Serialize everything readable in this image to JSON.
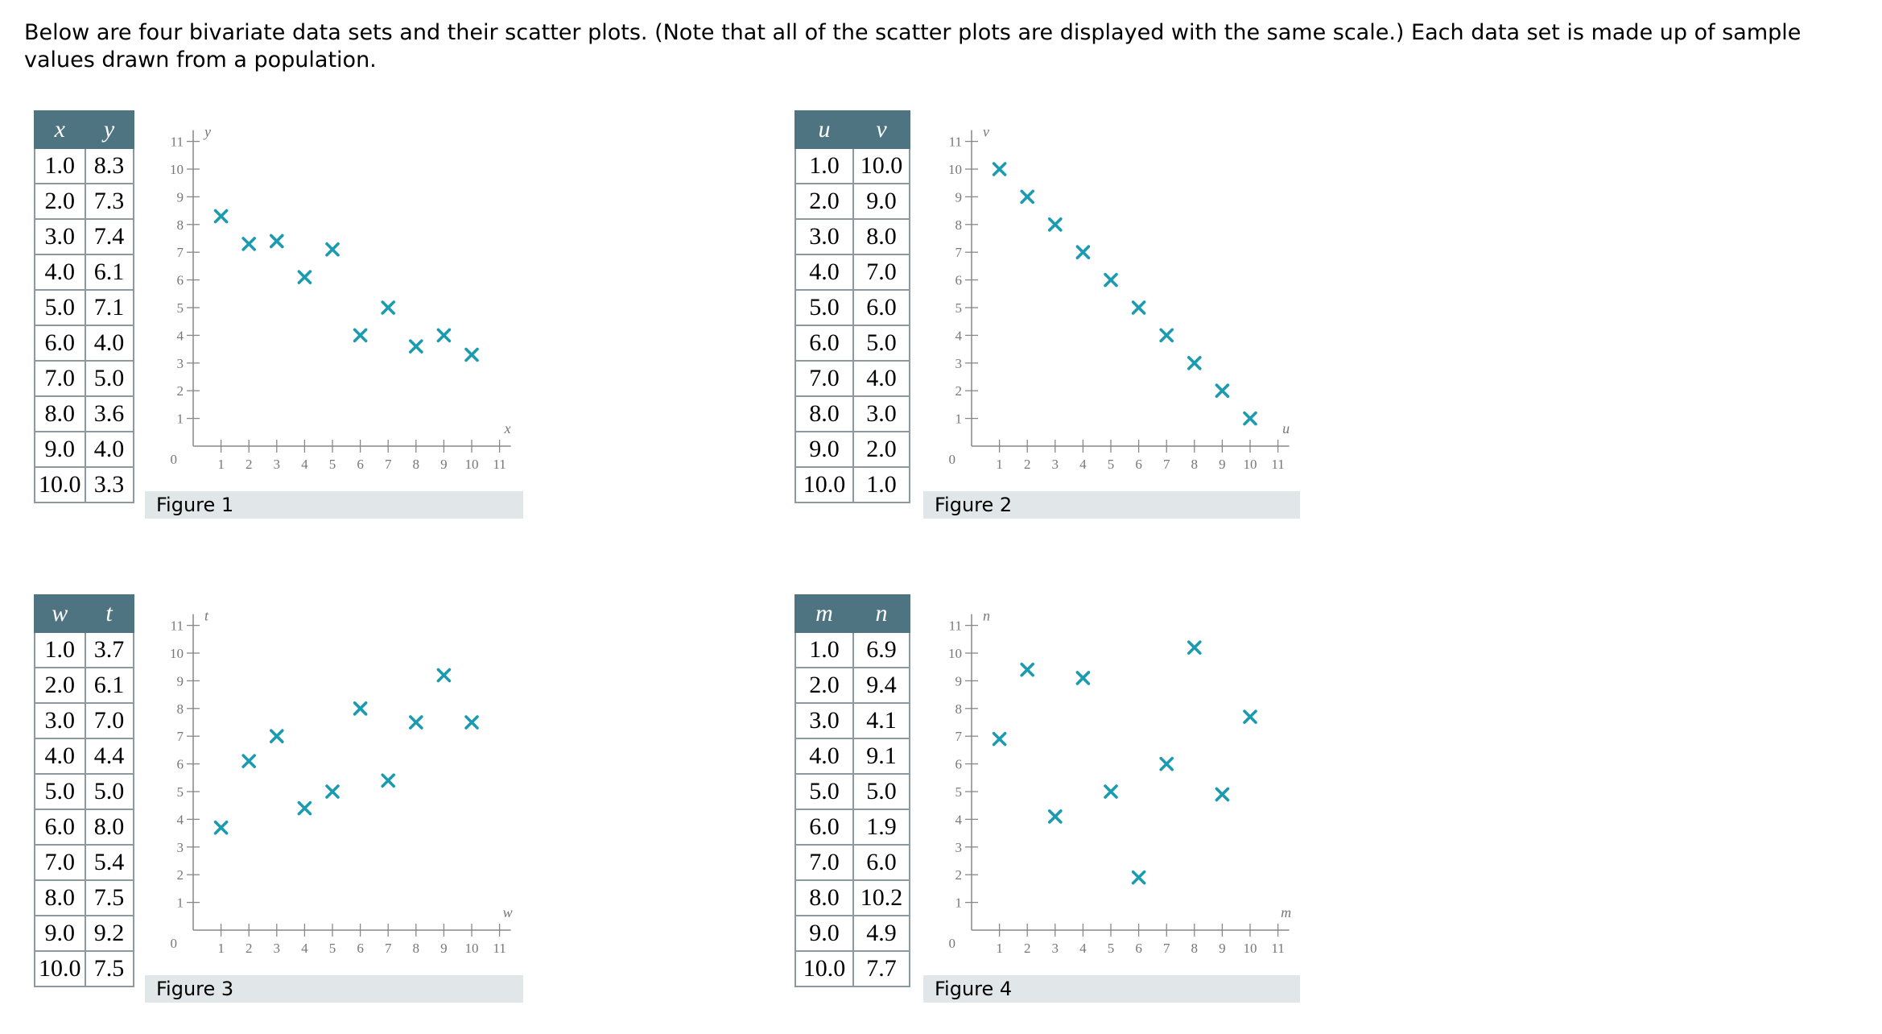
{
  "intro_text": "Below are four bivariate data sets and their scatter plots. (Note that all of the scatter plots are displayed with the same scale.) Each data set is made up of sample values drawn from a population.",
  "colors": {
    "header": "#4e7381",
    "marker": "#1a9bb0",
    "caption_bg": "#e1e7e8"
  },
  "chart_data": [
    {
      "type": "scatter",
      "caption": "Figure 1",
      "xlabel": "x",
      "ylabel": "y",
      "xlim": [
        0,
        11
      ],
      "ylim": [
        0,
        11
      ],
      "x": [
        1.0,
        2.0,
        3.0,
        4.0,
        5.0,
        6.0,
        7.0,
        8.0,
        9.0,
        10.0
      ],
      "y": [
        8.3,
        7.3,
        7.4,
        6.1,
        7.1,
        4.0,
        5.0,
        3.6,
        4.0,
        3.3
      ],
      "x_text": [
        "1.0",
        "2.0",
        "3.0",
        "4.0",
        "5.0",
        "6.0",
        "7.0",
        "8.0",
        "9.0",
        "10.0"
      ],
      "y_text": [
        "8.3",
        "7.3",
        "7.4",
        "6.1",
        "7.1",
        "4.0",
        "5.0",
        "3.6",
        "4.0",
        "3.3"
      ],
      "ticks": [
        "1",
        "2",
        "3",
        "4",
        "5",
        "6",
        "7",
        "8",
        "9",
        "10",
        "11"
      ],
      "origin": "0"
    },
    {
      "type": "scatter",
      "caption": "Figure 2",
      "xlabel": "u",
      "ylabel": "v",
      "xlim": [
        0,
        11
      ],
      "ylim": [
        0,
        11
      ],
      "x": [
        1.0,
        2.0,
        3.0,
        4.0,
        5.0,
        6.0,
        7.0,
        8.0,
        9.0,
        10.0
      ],
      "y": [
        10.0,
        9.0,
        8.0,
        7.0,
        6.0,
        5.0,
        4.0,
        3.0,
        2.0,
        1.0
      ],
      "x_text": [
        "1.0",
        "2.0",
        "3.0",
        "4.0",
        "5.0",
        "6.0",
        "7.0",
        "8.0",
        "9.0",
        "10.0"
      ],
      "y_text": [
        "10.0",
        "9.0",
        "8.0",
        "7.0",
        "6.0",
        "5.0",
        "4.0",
        "3.0",
        "2.0",
        "1.0"
      ],
      "ticks": [
        "1",
        "2",
        "3",
        "4",
        "5",
        "6",
        "7",
        "8",
        "9",
        "10",
        "11"
      ],
      "origin": "0"
    },
    {
      "type": "scatter",
      "caption": "Figure 3",
      "xlabel": "w",
      "ylabel": "t",
      "xlim": [
        0,
        11
      ],
      "ylim": [
        0,
        11
      ],
      "x": [
        1.0,
        2.0,
        3.0,
        4.0,
        5.0,
        6.0,
        7.0,
        8.0,
        9.0,
        10.0
      ],
      "y": [
        3.7,
        6.1,
        7.0,
        4.4,
        5.0,
        8.0,
        5.4,
        7.5,
        9.2,
        7.5
      ],
      "x_text": [
        "1.0",
        "2.0",
        "3.0",
        "4.0",
        "5.0",
        "6.0",
        "7.0",
        "8.0",
        "9.0",
        "10.0"
      ],
      "y_text": [
        "3.7",
        "6.1",
        "7.0",
        "4.4",
        "5.0",
        "8.0",
        "5.4",
        "7.5",
        "9.2",
        "7.5"
      ],
      "ticks": [
        "1",
        "2",
        "3",
        "4",
        "5",
        "6",
        "7",
        "8",
        "9",
        "10",
        "11"
      ],
      "origin": "0"
    },
    {
      "type": "scatter",
      "caption": "Figure 4",
      "xlabel": "m",
      "ylabel": "n",
      "xlim": [
        0,
        11
      ],
      "ylim": [
        0,
        11
      ],
      "x": [
        1.0,
        2.0,
        3.0,
        4.0,
        5.0,
        6.0,
        7.0,
        8.0,
        9.0,
        10.0
      ],
      "y": [
        6.9,
        9.4,
        4.1,
        9.1,
        5.0,
        1.9,
        6.0,
        10.2,
        4.9,
        7.7
      ],
      "x_text": [
        "1.0",
        "2.0",
        "3.0",
        "4.0",
        "5.0",
        "6.0",
        "7.0",
        "8.0",
        "9.0",
        "10.0"
      ],
      "y_text": [
        "6.9",
        "9.4",
        "4.1",
        "9.1",
        "5.0",
        "1.9",
        "6.0",
        "10.2",
        "4.9",
        "7.7"
      ],
      "ticks": [
        "1",
        "2",
        "3",
        "4",
        "5",
        "6",
        "7",
        "8",
        "9",
        "10",
        "11"
      ],
      "origin": "0"
    }
  ]
}
